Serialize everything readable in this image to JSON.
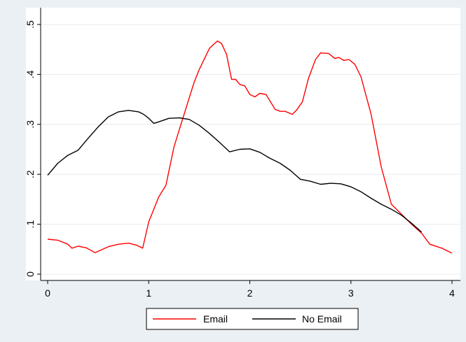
{
  "chart_data": {
    "type": "line",
    "title": "",
    "xlabel": "",
    "ylabel": "",
    "xlim": [
      0,
      4
    ],
    "ylim": [
      0,
      0.5
    ],
    "x_ticks": [
      {
        "value": 0,
        "label": "0"
      },
      {
        "value": 1,
        "label": "1"
      },
      {
        "value": 2,
        "label": "2"
      },
      {
        "value": 3,
        "label": "3"
      },
      {
        "value": 4,
        "label": "4"
      }
    ],
    "y_ticks": [
      {
        "value": 0,
        "label": "0"
      },
      {
        "value": 0.1,
        "label": ".1"
      },
      {
        "value": 0.2,
        "label": ".2"
      },
      {
        "value": 0.3,
        "label": ".3"
      },
      {
        "value": 0.4,
        "label": ".4"
      },
      {
        "value": 0.5,
        "label": ".5"
      }
    ],
    "grid": "horizontal",
    "legend_position": "bottom",
    "series": [
      {
        "name": "Email",
        "color": "#ff0000",
        "points": [
          [
            0.0,
            0.07
          ],
          [
            0.1,
            0.068
          ],
          [
            0.2,
            0.06
          ],
          [
            0.24,
            0.052
          ],
          [
            0.3,
            0.056
          ],
          [
            0.38,
            0.053
          ],
          [
            0.47,
            0.043
          ],
          [
            0.6,
            0.055
          ],
          [
            0.7,
            0.06
          ],
          [
            0.8,
            0.062
          ],
          [
            0.88,
            0.058
          ],
          [
            0.94,
            0.052
          ],
          [
            1.0,
            0.105
          ],
          [
            1.1,
            0.155
          ],
          [
            1.17,
            0.178
          ],
          [
            1.25,
            0.255
          ],
          [
            1.35,
            0.32
          ],
          [
            1.45,
            0.385
          ],
          [
            1.5,
            0.41
          ],
          [
            1.6,
            0.452
          ],
          [
            1.64,
            0.46
          ],
          [
            1.68,
            0.467
          ],
          [
            1.72,
            0.462
          ],
          [
            1.77,
            0.44
          ],
          [
            1.82,
            0.39
          ],
          [
            1.86,
            0.39
          ],
          [
            1.9,
            0.38
          ],
          [
            1.95,
            0.377
          ],
          [
            2.0,
            0.36
          ],
          [
            2.05,
            0.355
          ],
          [
            2.1,
            0.362
          ],
          [
            2.16,
            0.36
          ],
          [
            2.25,
            0.33
          ],
          [
            2.3,
            0.326
          ],
          [
            2.35,
            0.326
          ],
          [
            2.42,
            0.32
          ],
          [
            2.46,
            0.328
          ],
          [
            2.52,
            0.345
          ],
          [
            2.58,
            0.392
          ],
          [
            2.65,
            0.43
          ],
          [
            2.7,
            0.443
          ],
          [
            2.78,
            0.442
          ],
          [
            2.84,
            0.432
          ],
          [
            2.88,
            0.434
          ],
          [
            2.93,
            0.428
          ],
          [
            2.98,
            0.43
          ],
          [
            3.04,
            0.42
          ],
          [
            3.1,
            0.395
          ],
          [
            3.2,
            0.32
          ],
          [
            3.3,
            0.215
          ],
          [
            3.4,
            0.14
          ],
          [
            3.5,
            0.12
          ],
          [
            3.6,
            0.1
          ],
          [
            3.7,
            0.082
          ],
          [
            3.78,
            0.06
          ],
          [
            3.9,
            0.052
          ],
          [
            4.0,
            0.042
          ]
        ]
      },
      {
        "name": "No Email",
        "color": "#000000",
        "points": [
          [
            0.0,
            0.198
          ],
          [
            0.1,
            0.222
          ],
          [
            0.2,
            0.238
          ],
          [
            0.3,
            0.248
          ],
          [
            0.4,
            0.272
          ],
          [
            0.5,
            0.295
          ],
          [
            0.6,
            0.315
          ],
          [
            0.7,
            0.325
          ],
          [
            0.8,
            0.328
          ],
          [
            0.9,
            0.325
          ],
          [
            0.95,
            0.32
          ],
          [
            1.0,
            0.312
          ],
          [
            1.05,
            0.302
          ],
          [
            1.1,
            0.305
          ],
          [
            1.2,
            0.312
          ],
          [
            1.3,
            0.313
          ],
          [
            1.4,
            0.31
          ],
          [
            1.5,
            0.298
          ],
          [
            1.6,
            0.282
          ],
          [
            1.7,
            0.264
          ],
          [
            1.8,
            0.245
          ],
          [
            1.9,
            0.25
          ],
          [
            2.0,
            0.251
          ],
          [
            2.1,
            0.244
          ],
          [
            2.2,
            0.232
          ],
          [
            2.3,
            0.222
          ],
          [
            2.4,
            0.208
          ],
          [
            2.5,
            0.19
          ],
          [
            2.6,
            0.186
          ],
          [
            2.7,
            0.18
          ],
          [
            2.8,
            0.182
          ],
          [
            2.9,
            0.181
          ],
          [
            3.0,
            0.175
          ],
          [
            3.1,
            0.165
          ],
          [
            3.2,
            0.152
          ],
          [
            3.3,
            0.14
          ],
          [
            3.4,
            0.13
          ],
          [
            3.5,
            0.118
          ],
          [
            3.6,
            0.102
          ],
          [
            3.7,
            0.084
          ]
        ]
      }
    ]
  }
}
